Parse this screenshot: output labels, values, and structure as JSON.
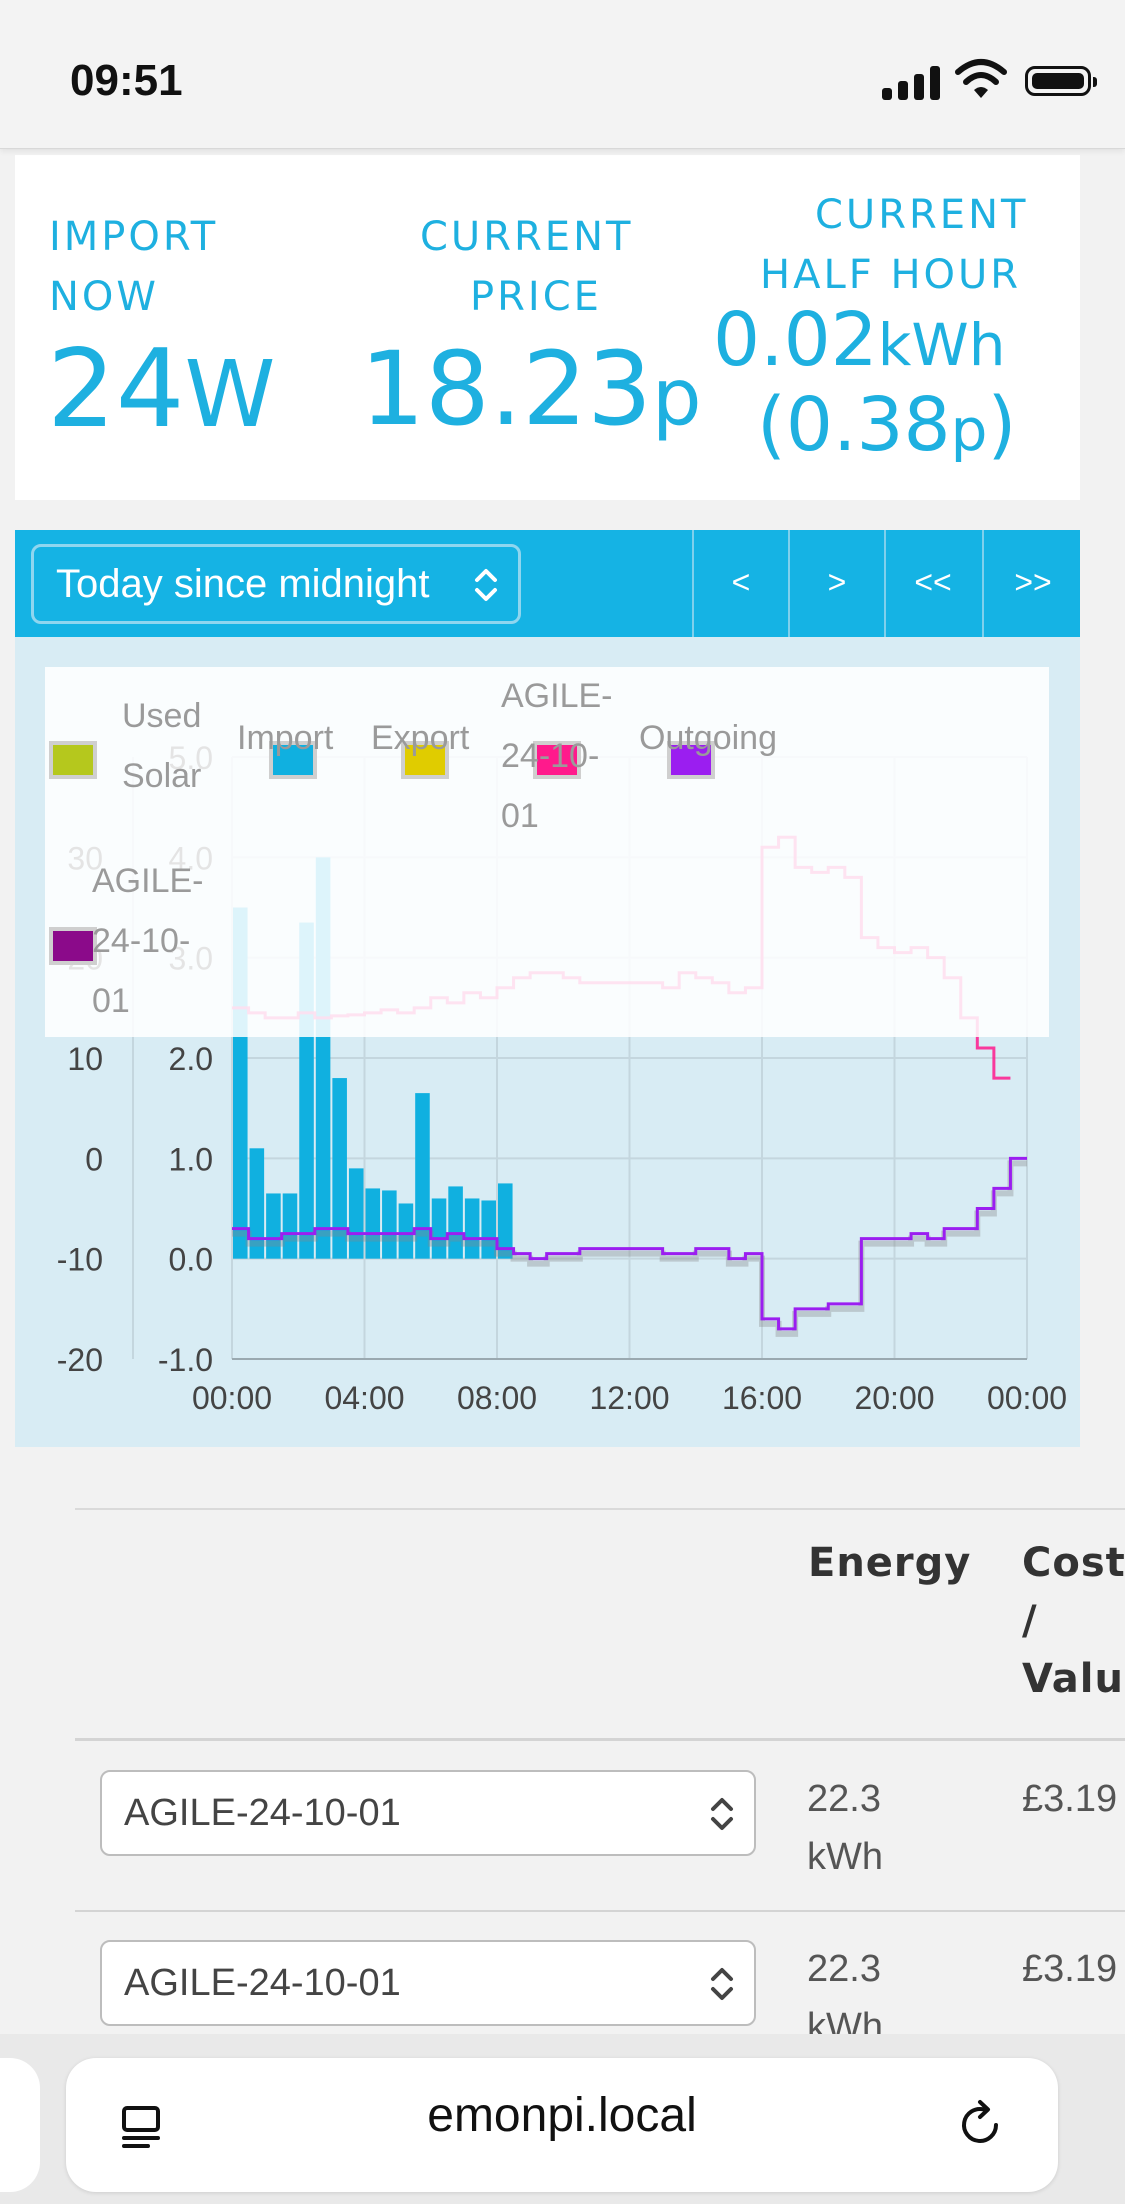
{
  "status_bar": {
    "time": "09:51"
  },
  "stats": {
    "import_now": {
      "label_line1": "IMPORT",
      "label_line2": "NOW",
      "value": "24",
      "unit": "W"
    },
    "current_price": {
      "label_line1": "CURRENT",
      "label_line2": "PRICE",
      "value": "18.23",
      "unit": "p"
    },
    "current_half_hour": {
      "label_line1": "CURRENT",
      "label_line2": "HALF HOUR",
      "value": "0.02",
      "unit": "kWh",
      "cost_open": "(0.38",
      "cost_unit": "p",
      "cost_close": ")"
    }
  },
  "controls": {
    "period": "Today since midnight",
    "buttons": [
      "<",
      ">",
      "<<",
      ">>"
    ]
  },
  "legend": {
    "used_solar_1": "Used",
    "used_solar_2": "Solar",
    "import": "Import",
    "export": "Export",
    "agile_1": "AGILE-",
    "agile_2": "24-10-",
    "agile_3": "01",
    "outgoing": "Outgoing",
    "agile2_1": "AGILE-",
    "agile2_2": "24-10-",
    "agile2_3": "01"
  },
  "colors": {
    "accent": "#1eb0e0",
    "used_solar": "#b5c81d",
    "import": "#10b0e0",
    "export": "#e0cc00",
    "agile_import": "#ff1a8c",
    "outgoing": "#9b1ef0",
    "agile_export": "#8b0a8a"
  },
  "chart_data": {
    "type": "bar",
    "x_tick_labels": [
      "00:00",
      "04:00",
      "08:00",
      "12:00",
      "16:00",
      "20:00",
      "00:00"
    ],
    "y_left_ticks": [
      "-20",
      "-10",
      "0",
      "10",
      "20",
      "30"
    ],
    "y_right_ticks": [
      "-1.0",
      "0.0",
      "1.0",
      "2.0",
      "3.0",
      "4.0",
      "5.0"
    ],
    "y_left_range": [
      -20,
      40
    ],
    "y_right_range": [
      -1.0,
      5.0
    ],
    "x_range_hours": [
      0,
      24
    ],
    "import_kwh": {
      "x_hours": [
        0,
        0.5,
        1,
        1.5,
        2,
        2.5,
        3,
        3.5,
        4,
        4.5,
        5,
        5.5,
        6,
        6.5,
        7,
        7.5,
        8
      ],
      "values": [
        3.5,
        1.1,
        0.65,
        0.65,
        3.35,
        4.0,
        1.8,
        0.9,
        0.7,
        0.68,
        0.55,
        1.65,
        0.6,
        0.72,
        0.6,
        0.58,
        0.75
      ]
    },
    "agile_import_price": {
      "x_hours": [
        0,
        0.5,
        1,
        1.5,
        2,
        2.5,
        3,
        3.5,
        4,
        4.5,
        5,
        5.5,
        6,
        6.5,
        7,
        7.5,
        8,
        8.5,
        9,
        9.5,
        10,
        10.5,
        11,
        11.5,
        12,
        12.5,
        13,
        13.5,
        14,
        14.5,
        15,
        15.5,
        16,
        16.5,
        17,
        17.5,
        18,
        18.5,
        19,
        19.5,
        20,
        20.5,
        21,
        21.5,
        22,
        22.5,
        23
      ],
      "values": [
        15,
        14.5,
        14,
        14,
        14.5,
        14,
        14.2,
        14.3,
        14.5,
        14.8,
        14.5,
        15,
        16,
        15.5,
        16.5,
        16,
        17,
        18,
        18.5,
        18.5,
        18,
        17.5,
        17.5,
        17.5,
        17.5,
        17.5,
        17,
        18.5,
        18,
        17.5,
        16.5,
        17,
        31,
        32,
        29,
        28.5,
        29,
        28,
        22,
        21,
        20.5,
        21,
        20,
        18,
        14,
        11,
        8
      ]
    },
    "outgoing_price": {
      "x_hours": [
        0,
        0.5,
        1,
        1.5,
        2,
        2.5,
        3,
        3.5,
        4,
        4.5,
        5,
        5.5,
        6,
        6.5,
        7,
        7.5,
        8,
        8.5,
        9,
        9.5,
        10,
        10.5,
        11,
        11.5,
        12,
        12.5,
        13,
        13.5,
        14,
        14.5,
        15,
        15.5,
        16,
        16.5,
        17,
        17.5,
        18,
        18.5,
        19,
        19.5,
        20,
        20.5,
        21,
        21.5,
        22,
        22.5,
        23,
        23.5
      ],
      "values": [
        -7,
        -8,
        -8,
        -7.5,
        -7.5,
        -7,
        -7,
        -7.5,
        -7.5,
        -7.5,
        -7.5,
        -7,
        -8,
        -7.5,
        -8,
        -8,
        -9,
        -9.5,
        -10,
        -9.5,
        -9.5,
        -9,
        -9,
        -9,
        -9,
        -9,
        -9.5,
        -9.5,
        -9,
        -9,
        -10,
        -9.5,
        -16,
        -17,
        -15,
        -15,
        -14.5,
        -14.5,
        -8,
        -8,
        -8,
        -7.5,
        -8,
        -7,
        -7,
        -5,
        -3,
        0
      ]
    }
  },
  "table": {
    "col_energy": "Energy",
    "col_cost_1": "Cost",
    "col_cost_2": "/",
    "col_cost_3": "Valu",
    "rows": [
      {
        "tariff": "AGILE-24-10-01",
        "energy_1": "22.3",
        "energy_2": "kWh",
        "cost": "£3.19"
      },
      {
        "tariff": "AGILE-24-10-01",
        "energy_1": "22.3",
        "energy_2": "kWh",
        "cost": "£3.19"
      }
    ]
  },
  "browser": {
    "url": "emonpi.local"
  }
}
